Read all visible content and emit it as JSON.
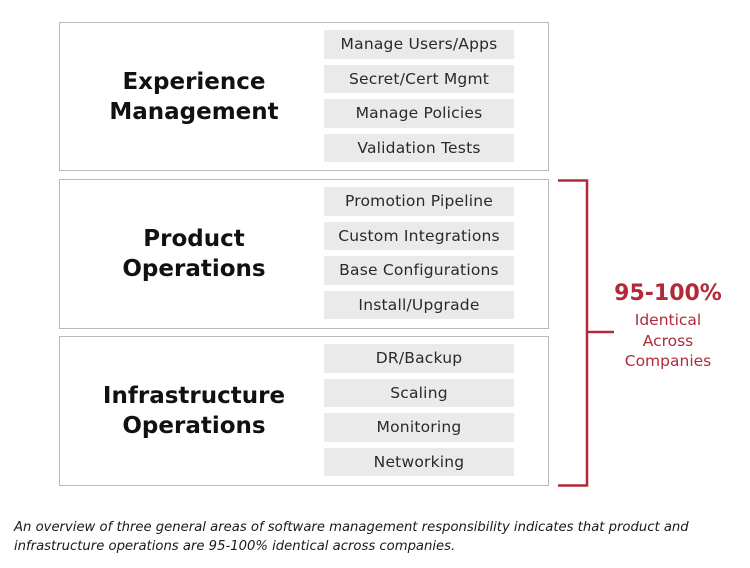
{
  "sections": [
    {
      "title": "Experience\nManagement",
      "items": [
        "Manage Users/Apps",
        "Secret/Cert Mgmt",
        "Manage Policies",
        "Validation Tests"
      ]
    },
    {
      "title": "Product\nOperations",
      "items": [
        "Promotion Pipeline",
        "Custom Integrations",
        "Base Configurations",
        "Install/Upgrade"
      ]
    },
    {
      "title": "Infrastructure\nOperations",
      "items": [
        "DR/Backup",
        "Scaling",
        "Monitoring",
        "Networking"
      ]
    }
  ],
  "callout": {
    "value": "95-100%",
    "label": "Identical\nAcross\nCompanies",
    "color": "#b22a3a"
  },
  "caption": "An overview of three general areas of software management responsibility indicates that product and\ninfrastructure operations are 95-100% identical across companies."
}
